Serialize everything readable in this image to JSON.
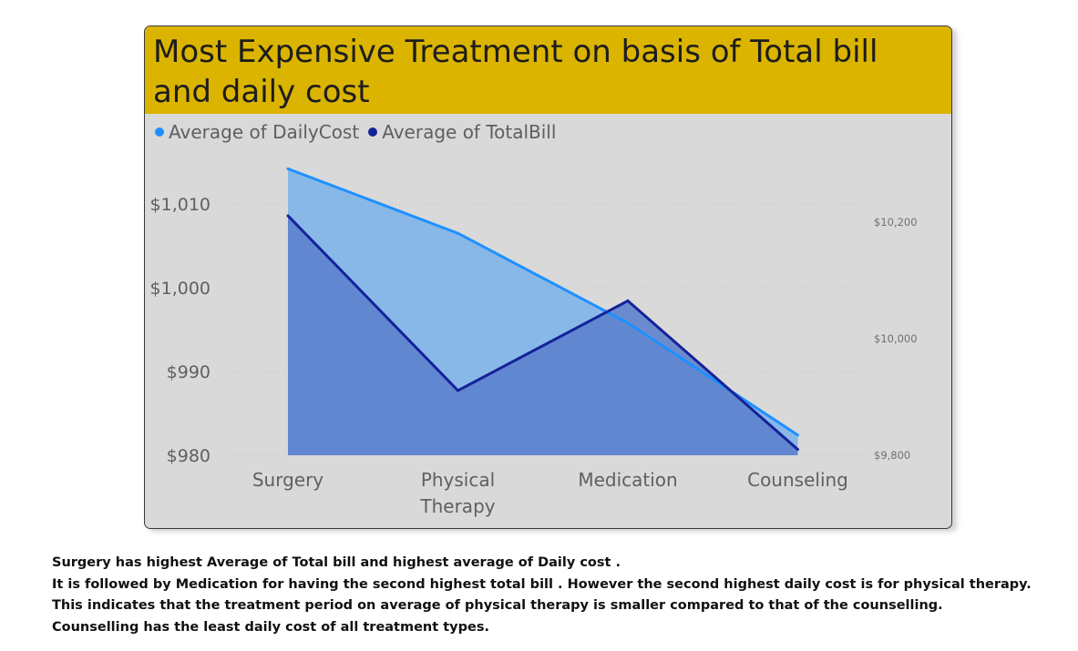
{
  "title": "Most Expensive Treatment on basis of Total bill and daily cost",
  "colors": {
    "title_bar": "#dbb400",
    "card_background": "#d9d9d9",
    "daily_cost_line": "#1e90ff",
    "daily_cost_fill": "#88b8e8",
    "total_bill_line": "#14229a",
    "total_bill_fill": "#5b7fcc"
  },
  "legend": [
    {
      "label": "Average of DailyCost",
      "color": "#1e90ff"
    },
    {
      "label": "Average of TotalBill",
      "color": "#14229a"
    }
  ],
  "chart_data": {
    "type": "area",
    "title": "Most Expensive Treatment on basis of Total bill and daily cost",
    "categories": [
      "Surgery",
      "Physical Therapy",
      "Medication",
      "Counseling"
    ],
    "category_labels": [
      [
        "Surgery"
      ],
      [
        "Physical",
        "Therapy"
      ],
      [
        "Medication"
      ],
      [
        "Counseling"
      ]
    ],
    "series": [
      {
        "name": "Average of DailyCost",
        "axis": "left",
        "values": [
          1014.2,
          1006.5,
          995.8,
          982.4
        ]
      },
      {
        "name": "Average of TotalBill",
        "axis": "right",
        "values": [
          10211,
          9911,
          10065,
          9810
        ]
      }
    ],
    "y_left": {
      "min": 980,
      "max": 1010,
      "ticks": [
        980,
        990,
        1000,
        1010
      ],
      "tick_labels": [
        "$980",
        "$990",
        "$1,000",
        "$1,010"
      ]
    },
    "y_right": {
      "min": 9800,
      "max": 10200,
      "ticks": [
        9800,
        10000,
        10200
      ],
      "tick_labels": [
        "$9,800",
        "$10,000",
        "$10,200"
      ]
    },
    "grid": true,
    "legend_position": "top-left"
  },
  "narrative": [
    "Surgery has highest Average of Total bill and highest average of Daily cost .",
    "It is followed by Medication for having the second highest total bill . However the second highest daily cost is for physical therapy.",
    "This indicates that the treatment period on average of physical therapy is smaller compared to that of the counselling.",
    "Counselling has the least daily cost of all treatment types."
  ]
}
